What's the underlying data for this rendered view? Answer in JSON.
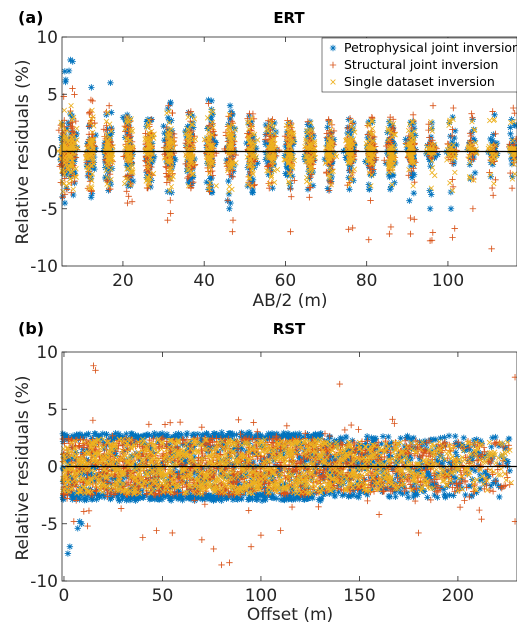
{
  "chart_data": [
    {
      "type": "scatter",
      "panel_label": "(a)",
      "title": "ERT",
      "xlabel": "AB/2 (m)",
      "ylabel": "Relative residuals (%)",
      "xlim": [
        5,
        117
      ],
      "ylim": [
        -10,
        10
      ],
      "xticks": [
        20,
        40,
        60,
        80,
        100
      ],
      "yticks": [
        -10,
        -5,
        0,
        5,
        10
      ],
      "zero_line": 0,
      "legend_position": "top-right",
      "x_positions": [
        5.5,
        7.5,
        12,
        16.5,
        21.5,
        26.5,
        31.5,
        36.5,
        41.5,
        46.5,
        51.5,
        56.5,
        61,
        66,
        71,
        76,
        81,
        86,
        91,
        96,
        101,
        106,
        111,
        116
      ],
      "series": [
        {
          "name": "Petrophysical joint inversion",
          "color": "#0072BD",
          "marker": "asterisk",
          "spread_min": [
            -4.5,
            -3.8,
            -4.0,
            -3.4,
            -3.0,
            -3.1,
            -3.6,
            -3.0,
            -3.6,
            -5.0,
            -3.6,
            -3.2,
            -3.2,
            -3.3,
            -3.4,
            -3.3,
            -3.3,
            -3.3,
            -4.3,
            -5.0,
            -5.0,
            -2.4,
            -2.2,
            -2.2
          ],
          "spread_max": [
            7.0,
            8.0,
            5.6,
            6.0,
            3.2,
            2.8,
            4.3,
            3.4,
            4.5,
            4.0,
            3.1,
            2.6,
            2.5,
            2.6,
            2.6,
            2.8,
            2.7,
            2.6,
            2.6,
            2.5,
            3.0,
            2.8,
            3.2,
            2.8
          ],
          "core_half_width": [
            1.8,
            2.0,
            2.0,
            1.9,
            2.0,
            2.0,
            2.0,
            2.1,
            2.2,
            2.2,
            2.0,
            1.8,
            1.7,
            1.6,
            1.6,
            1.6,
            1.6,
            1.5,
            1.4,
            0.8,
            0.7,
            0.7,
            0.7,
            0.7
          ]
        },
        {
          "name": "Structural joint inversion",
          "color": "#D95319",
          "marker": "plus",
          "spread_min": [
            -4.0,
            -3.6,
            -3.5,
            -3.3,
            -4.5,
            -3.2,
            -6.0,
            -3.2,
            -3.5,
            -7.0,
            -3.0,
            -3.2,
            -7.0,
            -4.0,
            -3.4,
            -6.8,
            -7.7,
            -7.2,
            -7.2,
            -7.8,
            -7.5,
            -5.0,
            -8.5,
            -3.2
          ],
          "spread_max": [
            4.8,
            5.5,
            4.5,
            4.0,
            3.0,
            2.8,
            4.0,
            3.5,
            4.2,
            3.3,
            3.3,
            2.8,
            2.7,
            2.6,
            2.8,
            2.9,
            3.0,
            3.0,
            3.2,
            4.0,
            3.8,
            3.3,
            3.5,
            3.8
          ],
          "core_half_width": [
            1.7,
            1.9,
            1.9,
            1.8,
            1.9,
            1.9,
            1.9,
            2.0,
            2.0,
            2.0,
            1.9,
            1.7,
            1.6,
            1.5,
            1.5,
            1.5,
            1.4,
            1.4,
            1.3,
            0.8,
            0.7,
            0.6,
            0.6,
            0.6
          ]
        },
        {
          "name": "Single dataset inversion",
          "color": "#EDB120",
          "marker": "cross",
          "spread_min": [
            -3.5,
            -3.3,
            -3.2,
            -3.0,
            -2.9,
            -3.0,
            -3.4,
            -3.0,
            -3.3,
            -3.5,
            -3.0,
            -2.8,
            -2.8,
            -2.8,
            -2.9,
            -2.9,
            -3.0,
            -2.9,
            -3.0,
            -3.2,
            -3.4,
            -2.5,
            -2.8,
            -2.4
          ],
          "spread_max": [
            3.6,
            4.0,
            3.6,
            3.4,
            3.0,
            2.7,
            3.5,
            3.2,
            3.6,
            3.2,
            2.9,
            2.6,
            2.5,
            2.5,
            2.5,
            2.6,
            2.7,
            2.6,
            2.6,
            2.6,
            2.8,
            2.6,
            2.8,
            2.6
          ],
          "core_half_width": [
            1.6,
            1.8,
            1.8,
            1.7,
            1.8,
            1.8,
            1.8,
            1.9,
            1.9,
            1.9,
            1.8,
            1.6,
            1.5,
            1.4,
            1.4,
            1.4,
            1.3,
            1.3,
            1.2,
            0.7,
            0.6,
            0.6,
            0.6,
            0.6
          ]
        }
      ]
    },
    {
      "type": "scatter",
      "panel_label": "(b)",
      "title": "RST",
      "xlabel": "Offset (m)",
      "ylabel": "Relative residuals (%)",
      "xlim": [
        -1,
        230
      ],
      "ylim": [
        -10,
        10
      ],
      "xticks": [
        0,
        50,
        100,
        150,
        200
      ],
      "yticks": [
        -10,
        -5,
        0,
        5,
        10
      ],
      "zero_line": 0,
      "x_spacing": 2,
      "series": [
        {
          "name": "Petrophysical joint inversion",
          "color": "#0072BD",
          "marker": "asterisk",
          "band_min": -3.0,
          "band_max": 3.0,
          "dense_until_x": 130
        },
        {
          "name": "Structural joint inversion",
          "color": "#D95319",
          "marker": "plus",
          "band_min": -2.5,
          "band_max": 2.5,
          "outliers": [
            [
              15,
              8.8
            ],
            [
              16,
              8.4
            ],
            [
              5,
              -4.8
            ],
            [
              12,
              -5.2
            ],
            [
              40,
              -6.2
            ],
            [
              47,
              -5.6
            ],
            [
              55,
              -5.8
            ],
            [
              70,
              -6.4
            ],
            [
              76,
              -7.2
            ],
            [
              80,
              -8.6
            ],
            [
              84,
              -8.4
            ],
            [
              95,
              -7.0
            ],
            [
              100,
              -6.0
            ],
            [
              110,
              -5.6
            ],
            [
              140,
              7.2
            ],
            [
              160,
              -4.2
            ],
            [
              180,
              -5.8
            ],
            [
              212,
              -4.6
            ],
            [
              229,
              -4.8
            ],
            [
              229,
              7.8
            ]
          ]
        },
        {
          "name": "Single dataset inversion",
          "color": "#EDB120",
          "marker": "cross",
          "band_min": -2.4,
          "band_max": 2.4,
          "outliers": []
        }
      ],
      "extra_blue_outliers": [
        [
          3,
          -7.0
        ],
        [
          2,
          -7.6
        ],
        [
          7,
          -5.4
        ],
        [
          8,
          -4.8
        ],
        [
          9,
          -5.0
        ]
      ]
    }
  ]
}
